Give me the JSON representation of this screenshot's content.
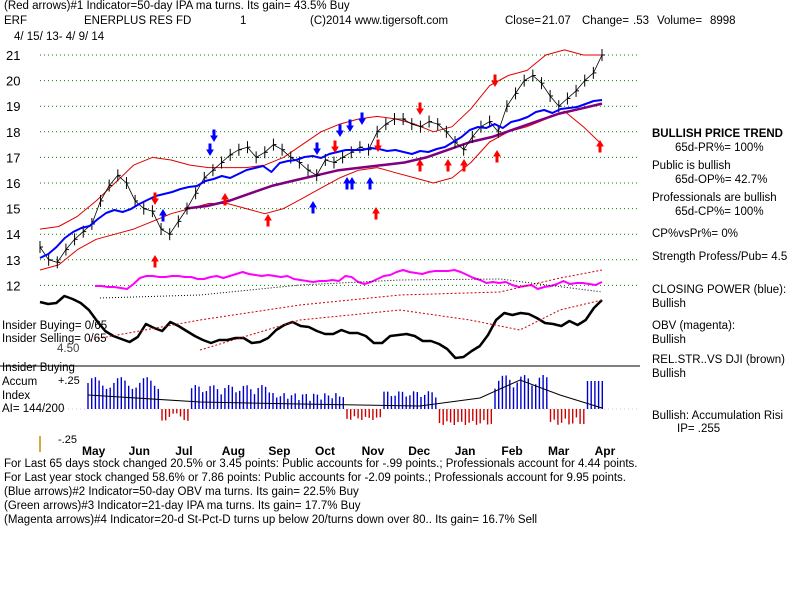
{
  "header": {
    "line1": "(Red arrows)#1 Indicator=50-day IPA ma turns. Its gain= 43.5% Buy",
    "ticker": "ERF",
    "name": "ENERPLUS RES FD",
    "one": "1",
    "copyright": "(C)2014 www.tigersoft.com",
    "close_label": "Close=",
    "close": "21.07",
    "change_label": "Change=",
    "change": ".53",
    "volume_label": "Volume=",
    "volume": "8998",
    "dates": "4/ 15/ 13- 4/ 9/ 14"
  },
  "right_panel": {
    "bullish_trend_title": "BULLISH PRICE TREND",
    "pr": "65d-PR%= 100%",
    "public_title": "Public is bullish",
    "op": "65d-OP%= 42.7%",
    "pros_title": "Professionals are bullish",
    "cp": "65d-CP%= 100%",
    "cpvspr": "CP%vsPr%=  0%",
    "strength": "Strength Profess/Pub= 4.5",
    "closing_power": "CLOSING POWER (blue):",
    "closing_power_val": "Bullish",
    "obv": "OBV (magenta):",
    "obv_val": "Bullish",
    "relstr": "REL.STR..VS DJI (brown)",
    "relstr_val": "Bullish",
    "accum": "Bullish: Accumulation Risi",
    "ip": "IP=  .255"
  },
  "left_panel": {
    "insider_buying_ratio": "Insider Buying= 0/65",
    "insider_selling_ratio": "Insider Selling= 0/65",
    "insider_buying": "Insider Buying",
    "accum": "Accum",
    "index": "Index",
    "ai": "AI= 144/200",
    "obv_scale": "4.50"
  },
  "footer": {
    "line1": "For Last 65 days stock changed  20.5% or  3.45 points:  Public accounts for -.99 points.;  Professionals account for  4.44 points.",
    "line2": "For Last year stock changed  58.6% or  7.86 points:  Public accounts for -2.09 points.;  Professionals account for  9.95 points.",
    "line3": "(Blue arrows)#2 Indicator=50-day OBV ma turns. Its gain= 22.5% Buy",
    "line4": "(Green arrows)#3 Indicator=21-day IPA ma turns. Its gain= 17.7% Buy",
    "line5": "(Magenta arrows)#4 Indicator=20-d St-Pct-D turns up below 20/turns down over 80.. Its gain= 16.7% Sell"
  },
  "colors": {
    "price": "#000000",
    "band": "#e00000",
    "ma": "#800080",
    "closing_power": "#0000ff",
    "obv": "#ff00ff",
    "ipa": "#000000",
    "accum_pos": "#0000cc",
    "accum_neg": "#cc0000",
    "grid": "#008000",
    "buy_arrow": "#ff0000",
    "blue_arrow": "#0000ff"
  },
  "chart_data": {
    "type": "line",
    "x_labels": [
      "May",
      "Jun",
      "Jul",
      "Aug",
      "Sep",
      "Oct",
      "Nov",
      "Dec",
      "Jan",
      "Feb",
      "Mar",
      "Apr"
    ],
    "y_ticks": [
      21,
      20,
      19,
      18,
      17,
      16,
      15,
      14,
      13,
      12
    ],
    "ylim": [
      12,
      21.5
    ],
    "accum_ticks": [
      "+.25",
      "-.25"
    ],
    "series": [
      {
        "key": "price",
        "values": [
          13.5,
          13.0,
          12.9,
          13.4,
          13.8,
          14.1,
          14.4,
          15.3,
          15.9,
          16.3,
          16.0,
          15.3,
          15.0,
          14.9,
          14.2,
          14.0,
          14.5,
          15.0,
          15.6,
          16.2,
          16.5,
          16.8,
          17.1,
          17.3,
          17.4,
          17.0,
          17.2,
          17.5,
          17.3,
          17.0,
          16.8,
          16.5,
          16.3,
          16.9,
          16.8,
          17.0,
          17.2,
          17.4,
          17.3,
          18.0,
          18.3,
          18.5,
          18.5,
          18.3,
          18.2,
          18.4,
          18.3,
          18.0,
          17.6,
          17.3,
          17.8,
          18.2,
          18.4,
          18.0,
          19.0,
          19.5,
          20.0,
          20.2,
          19.9,
          19.4,
          19.0,
          19.3,
          19.6,
          20.0,
          20.3,
          21.0
        ]
      },
      {
        "key": "upper_band",
        "values": [
          14.2,
          14.3,
          14.7,
          15.3,
          16.0,
          16.7,
          17.0,
          16.9,
          16.7,
          16.6,
          16.6,
          16.6,
          16.7,
          17.0,
          17.5,
          18.0,
          18.3,
          18.5,
          18.6,
          18.5,
          18.3,
          18.0,
          18.2,
          18.9,
          19.8,
          20.2,
          20.4,
          21.0,
          21.2,
          21.0,
          21.0
        ]
      },
      {
        "key": "lower_band",
        "values": [
          12.6,
          12.8,
          13.4,
          13.8,
          14.0,
          14.2,
          14.5,
          14.8,
          15.0,
          15.2,
          15.2,
          15.0,
          14.8,
          15.0,
          15.4,
          15.8,
          16.2,
          16.5,
          16.6,
          16.4,
          16.2,
          16.0,
          16.2,
          16.8,
          17.6,
          18.0,
          18.2,
          18.5,
          18.8,
          18.2,
          17.5
        ]
      },
      {
        "key": "ma",
        "values": [
          15.0,
          15.1,
          15.3,
          15.6,
          15.9,
          16.1,
          16.3,
          16.5,
          16.6,
          16.7,
          16.8,
          17.0,
          17.3,
          17.6,
          17.8,
          18.1,
          18.4,
          18.7,
          18.9,
          19.1
        ]
      },
      {
        "key": "closing_power",
        "values": [
          258,
          254,
          247,
          238,
          232,
          228,
          226,
          219,
          213,
          210,
          212,
          209,
          204,
          200,
          196,
          194,
          192,
          189,
          187,
          186,
          181,
          179,
          176,
          178,
          174,
          170,
          168,
          166,
          172,
          163,
          161,
          160,
          157,
          156,
          158,
          154,
          152,
          150,
          150,
          150,
          148,
          149,
          151,
          150,
          152,
          154,
          151,
          152,
          149,
          147,
          142,
          137,
          130,
          127,
          128,
          124,
          128,
          122,
          120,
          117,
          112,
          110,
          113,
          109,
          108,
          107,
          104,
          101,
          100
        ]
      },
      {
        "key": "obv",
        "values": [
          286,
          286,
          287,
          287,
          288,
          289,
          284,
          278,
          276,
          276,
          277,
          277,
          276,
          276,
          277,
          277,
          279,
          279,
          277,
          276,
          278,
          276,
          274,
          272,
          274,
          275,
          276,
          275,
          276,
          277,
          276,
          279,
          280,
          281,
          282,
          281,
          281,
          280,
          281,
          276,
          277,
          282,
          284,
          282,
          279,
          276,
          275,
          272,
          270,
          272,
          273,
          274,
          272,
          271,
          271,
          271,
          270,
          272,
          275,
          278,
          280,
          283,
          282,
          283,
          282,
          285,
          287,
          286,
          285,
          289,
          287,
          286,
          284,
          281,
          284,
          283,
          283,
          284,
          285,
          282
        ]
      },
      {
        "key": "ipa",
        "values": [
          302,
          304,
          303,
          296,
          299,
          303,
          310,
          321,
          331,
          336,
          339,
          342,
          337,
          324,
          328,
          331,
          322,
          326,
          331,
          336,
          340,
          343,
          340,
          340,
          338,
          338,
          343,
          342,
          338,
          330,
          325,
          322,
          326,
          327,
          331,
          334,
          334,
          330,
          333,
          333,
          336,
          343,
          343,
          336,
          335,
          334,
          336,
          341,
          341,
          344,
          349,
          358,
          357,
          351,
          346,
          335,
          320,
          313,
          315,
          313,
          314,
          318,
          323,
          324,
          326,
          321,
          325,
          320,
          308,
          300
        ]
      }
    ]
  }
}
